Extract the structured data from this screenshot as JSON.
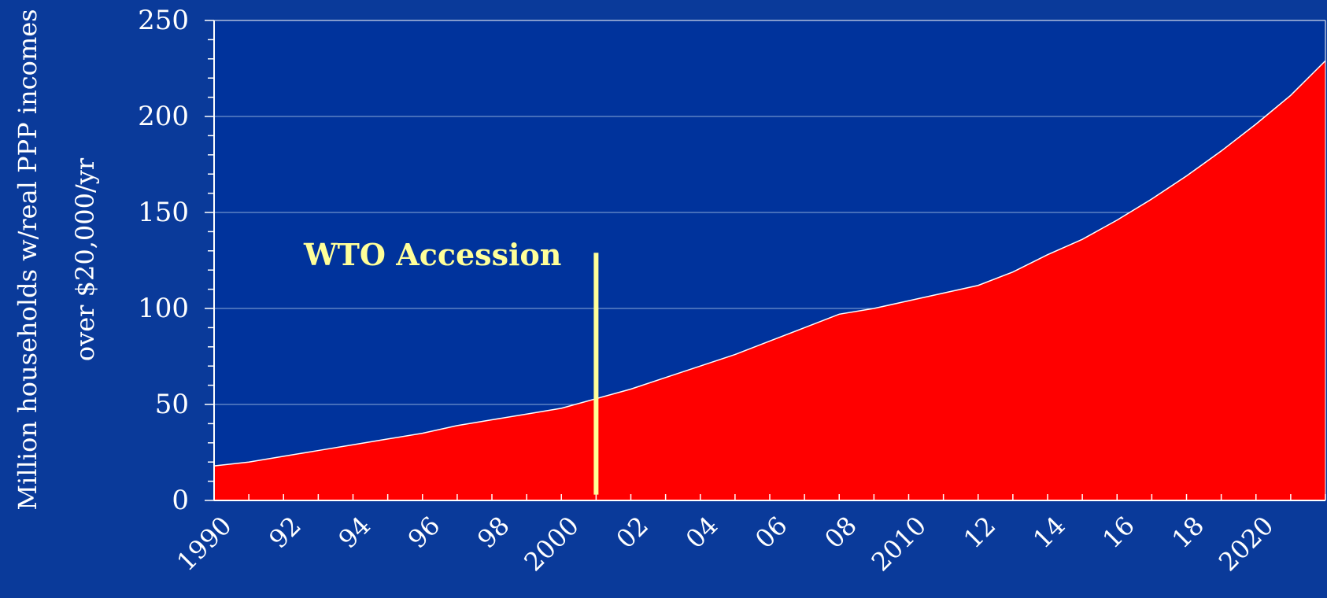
{
  "chart_data": {
    "type": "area",
    "ylabel_line1": "Million households w/real PPP incomes",
    "ylabel_line2": "over $20,000/yr",
    "ylim": [
      0,
      250
    ],
    "yticks": [
      0,
      50,
      100,
      150,
      200,
      250
    ],
    "xlim": [
      1990,
      2022
    ],
    "xtick_labels": [
      {
        "x": 1990,
        "label": "1990"
      },
      {
        "x": 1992,
        "label": "92"
      },
      {
        "x": 1994,
        "label": "94"
      },
      {
        "x": 1996,
        "label": "96"
      },
      {
        "x": 1998,
        "label": "98"
      },
      {
        "x": 2000,
        "label": "2000"
      },
      {
        "x": 2002,
        "label": "02"
      },
      {
        "x": 2004,
        "label": "04"
      },
      {
        "x": 2006,
        "label": "06"
      },
      {
        "x": 2008,
        "label": "08"
      },
      {
        "x": 2010,
        "label": "2010"
      },
      {
        "x": 2012,
        "label": "12"
      },
      {
        "x": 2014,
        "label": "14"
      },
      {
        "x": 2016,
        "label": "16"
      },
      {
        "x": 2018,
        "label": "18"
      },
      {
        "x": 2020,
        "label": "2020"
      }
    ],
    "grid": true,
    "series": [
      {
        "color": "#ff0000",
        "x": [
          1990,
          1991,
          1992,
          1993,
          1994,
          1995,
          1996,
          1997,
          1998,
          1999,
          2000,
          2001,
          2002,
          2003,
          2004,
          2005,
          2006,
          2007,
          2008,
          2009,
          2010,
          2011,
          2012,
          2013,
          2014,
          2015,
          2016,
          2017,
          2018,
          2019,
          2020,
          2021,
          2022
        ],
        "values": [
          18,
          20,
          23,
          26,
          29,
          32,
          35,
          39,
          42,
          45,
          48,
          53,
          58,
          64,
          70,
          76,
          83,
          90,
          97,
          100,
          104,
          108,
          112,
          119,
          128,
          136,
          146,
          157,
          169,
          182,
          196,
          211,
          229
        ]
      }
    ],
    "annotation": {
      "text": "WTO Accession",
      "x": 2001,
      "y_from": 3,
      "y_to": 129,
      "color": "#ffff99"
    }
  },
  "colors": {
    "background": "#0a3a9a",
    "plot_background": "#00339c",
    "axis": "#ffffff",
    "gridline": "#8aa8d8",
    "text": "#ffffff"
  }
}
